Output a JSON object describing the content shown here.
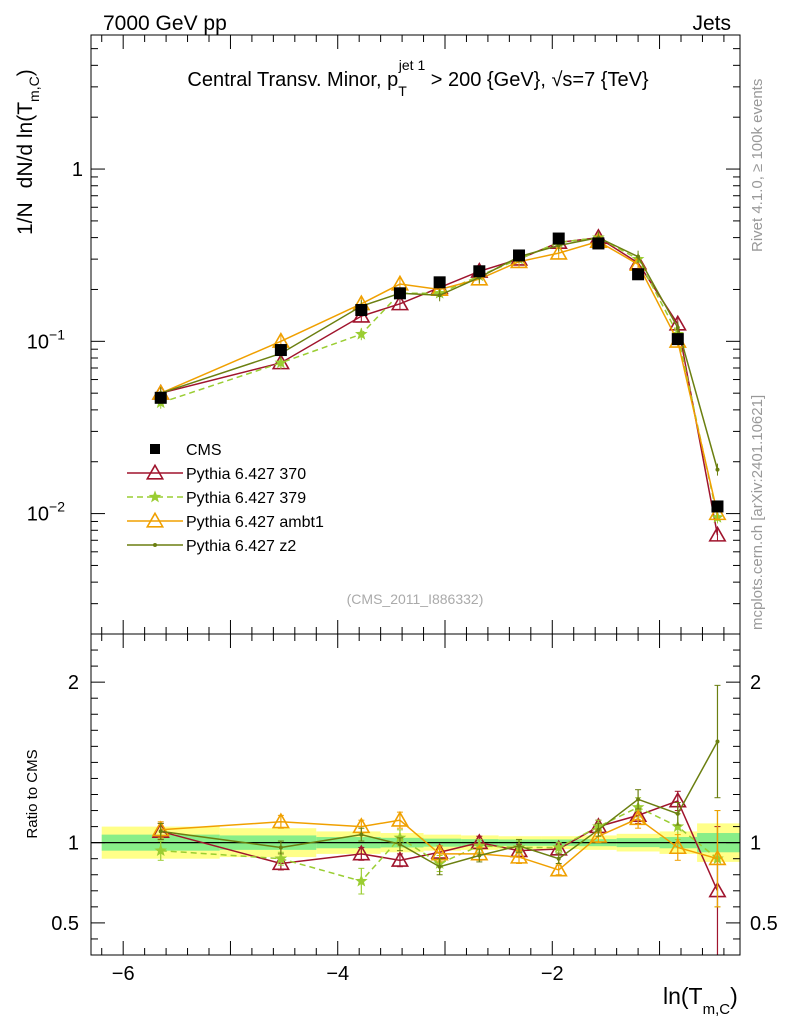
{
  "header": {
    "left": "7000 GeV pp",
    "right": "Jets"
  },
  "side_labels": {
    "rivet": "Rivet 4.1.0, ≥ 100k events",
    "mcplots": "mcplots.cern.ch [arXiv:2401.10621]"
  },
  "chart_data": [
    {
      "type": "line",
      "panel": "main",
      "title": {
        "prefix": "Central Transv. Minor, p",
        "sub": "T",
        "sup": "jet 1",
        "suffix": " > 200 {GeV}, √s=7 {TeV}"
      },
      "watermark": "(CMS_2011_I886332)",
      "ylabel": {
        "prefix": "1/N",
        "main": "dN/d ln(T",
        "sub": "m,C",
        "suffix": ")"
      },
      "yscale": "log",
      "ylim": [
        0.002,
        6.0
      ],
      "xlim": [
        -6.3,
        -0.25
      ],
      "ytick_labels": [
        {
          "value": 1,
          "base": "1",
          "exp": ""
        },
        {
          "value": 0.1,
          "base": "10",
          "exp": "−1"
        },
        {
          "value": 0.01,
          "base": "10",
          "exp": "−2"
        }
      ],
      "legend_position": "left-middle",
      "x": [
        -5.65,
        -4.53,
        -3.78,
        -3.42,
        -3.05,
        -2.68,
        -2.31,
        -1.94,
        -1.57,
        -1.2,
        -0.83,
        -0.46
      ],
      "series": [
        {
          "name": "CMS",
          "color": "#000000",
          "marker": "square",
          "values": [
            0.047,
            0.089,
            0.152,
            0.19,
            0.22,
            0.255,
            0.315,
            0.395,
            0.37,
            0.245,
            0.103,
            0.011
          ]
        },
        {
          "name": "Pythia 6.427 370",
          "color": "#a0142d",
          "marker": "triangle-open",
          "dash": "",
          "values": [
            0.05,
            0.075,
            0.14,
            0.165,
            0.205,
            0.255,
            0.3,
            0.375,
            0.4,
            0.285,
            0.126,
            0.0075
          ]
        },
        {
          "name": "Pythia 6.427 379",
          "color": "#9acd32",
          "marker": "star",
          "dash": "6,4",
          "values": [
            0.044,
            0.075,
            0.11,
            0.19,
            0.19,
            0.24,
            0.3,
            0.375,
            0.4,
            0.3,
            0.11,
            0.0095
          ]
        },
        {
          "name": "Pythia 6.427 ambt1",
          "color": "#f0a000",
          "marker": "triangle-open",
          "dash": "",
          "values": [
            0.05,
            0.1,
            0.165,
            0.215,
            0.2,
            0.23,
            0.29,
            0.325,
            0.38,
            0.28,
            0.1,
            0.01
          ]
        },
        {
          "name": "Pythia 6.427 z2",
          "color": "#6b7f10",
          "marker": "dot",
          "dash": "",
          "values": [
            0.05,
            0.085,
            0.16,
            0.19,
            0.185,
            0.235,
            0.31,
            0.36,
            0.4,
            0.31,
            0.12,
            0.018
          ]
        }
      ]
    },
    {
      "type": "line",
      "panel": "ratio",
      "ylabel": "Ratio to CMS",
      "ylim": [
        0.3,
        2.3
      ],
      "xlim": [
        -6.3,
        -0.25
      ],
      "yticks": [
        0.5,
        1,
        2
      ],
      "ytick_labels": [
        "0.5",
        "1",
        "2"
      ],
      "xticks": [
        -6,
        -4,
        -2
      ],
      "xtick_labels": [
        "−6",
        "−4",
        "−2"
      ],
      "xlabel": {
        "main": "ln(T",
        "sub": "m,C",
        "suffix": ")"
      },
      "band_edges": [
        -6.2,
        -5.1,
        -4.2,
        -3.6,
        -3.2,
        -2.85,
        -2.5,
        -2.1,
        -1.75,
        -1.4,
        -1.0,
        -0.65,
        -0.25
      ],
      "band_yellow": [
        0.1,
        0.09,
        0.07,
        0.06,
        0.05,
        0.045,
        0.04,
        0.04,
        0.045,
        0.055,
        0.07,
        0.12
      ],
      "band_green": [
        0.05,
        0.045,
        0.035,
        0.03,
        0.025,
        0.022,
        0.02,
        0.02,
        0.022,
        0.028,
        0.035,
        0.06
      ],
      "series": [
        {
          "name": "Pythia 6.427 370",
          "color": "#a0142d",
          "marker": "triangle-open",
          "dash": "",
          "values": [
            1.07,
            0.87,
            0.93,
            0.89,
            0.94,
            1.0,
            0.95,
            0.96,
            1.1,
            1.17,
            1.26,
            0.7
          ],
          "errors": [
            0.05,
            0.04,
            0.04,
            0.04,
            0.04,
            0.04,
            0.04,
            0.03,
            0.04,
            0.05,
            0.06,
            0.4
          ]
        },
        {
          "name": "Pythia 6.427 379",
          "color": "#9acd32",
          "marker": "star",
          "dash": "6,4",
          "values": [
            0.95,
            0.9,
            0.76,
            1.03,
            0.87,
            0.98,
            0.97,
            0.97,
            1.1,
            1.22,
            1.1,
            0.9
          ],
          "errors": [
            0.06,
            0.04,
            0.08,
            0.05,
            0.05,
            0.04,
            0.04,
            0.03,
            0.04,
            0.06,
            0.08,
            0.3
          ]
        },
        {
          "name": "Pythia 6.427 ambt1",
          "color": "#f0a000",
          "marker": "triangle-open",
          "dash": "",
          "values": [
            1.08,
            1.13,
            1.1,
            1.14,
            0.93,
            0.93,
            0.91,
            0.83,
            1.04,
            1.15,
            0.97,
            0.9
          ],
          "errors": [
            0.05,
            0.04,
            0.04,
            0.05,
            0.05,
            0.04,
            0.04,
            0.03,
            0.04,
            0.06,
            0.08,
            0.3
          ]
        },
        {
          "name": "Pythia 6.427 z2",
          "color": "#6b7f10",
          "marker": "dot",
          "dash": "",
          "values": [
            1.07,
            0.97,
            1.05,
            0.99,
            0.85,
            0.92,
            0.98,
            0.9,
            1.08,
            1.27,
            1.18,
            1.63
          ],
          "errors": [
            0.05,
            0.04,
            0.04,
            0.04,
            0.05,
            0.04,
            0.04,
            0.03,
            0.04,
            0.06,
            0.07,
            0.35
          ]
        }
      ]
    }
  ]
}
